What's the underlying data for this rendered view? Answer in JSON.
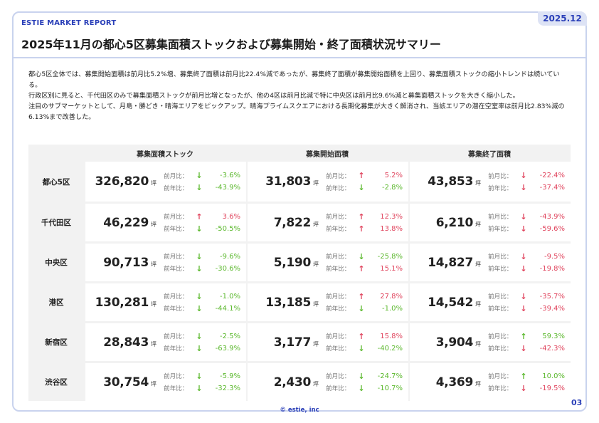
{
  "header": {
    "report_label": "ESTIE MARKET REPORT",
    "date": "2025.12",
    "title": "2025年11月の都心5区募集面積ストックおよび募集開始・終了面積状況サマリー"
  },
  "summary": [
    "都心5区全体では、募集開始面積は前月比5.2%増、募集終了面積は前月比22.4%減であったが、募集終了面積が募集開始面積を上回り、募集面積ストックの縮小トレンドは続いている。",
    "行政区別に見ると、千代田区のみで募集面積ストックが前月比増となったが、他の4区は前月比減で特に中央区は前月比9.6%減と募集面積ストックを大きく縮小した。",
    "注目のサブマーケットとして、月島・勝どき・晴海エリアをピックアップ。晴海プライムスクエアにおける長期化募集が大きく解消され、当該エリアの潜在空室率は前月比2.83%減の6.13%まで改善した。"
  ],
  "table": {
    "columns": [
      "募集面積ストック",
      "募集開始面積",
      "募集終了面積"
    ],
    "unit": "坪",
    "mom_label": "前月比：",
    "yoy_label": "前年比：",
    "rows": [
      {
        "region": "都心5区",
        "cells": [
          {
            "value": "326,820",
            "mom": "-3.6%",
            "mom_dir": "down",
            "mom_color": "down",
            "yoy": "-43.9%",
            "yoy_dir": "down",
            "yoy_color": "down"
          },
          {
            "value": "31,803",
            "mom": "5.2%",
            "mom_dir": "up",
            "mom_color": "up",
            "yoy": "-2.8%",
            "yoy_dir": "down",
            "yoy_color": "down"
          },
          {
            "value": "43,853",
            "mom": "-22.4%",
            "mom_dir": "down",
            "mom_color": "up",
            "yoy": "-37.4%",
            "yoy_dir": "down",
            "yoy_color": "up"
          }
        ]
      },
      {
        "region": "千代田区",
        "cells": [
          {
            "value": "46,229",
            "mom": "3.6%",
            "mom_dir": "up",
            "mom_color": "up",
            "yoy": "-50.5%",
            "yoy_dir": "down",
            "yoy_color": "down"
          },
          {
            "value": "7,822",
            "mom": "12.3%",
            "mom_dir": "up",
            "mom_color": "up",
            "yoy": "13.8%",
            "yoy_dir": "up",
            "yoy_color": "up"
          },
          {
            "value": "6,210",
            "mom": "-43.9%",
            "mom_dir": "down",
            "mom_color": "up",
            "yoy": "-59.6%",
            "yoy_dir": "down",
            "yoy_color": "up"
          }
        ]
      },
      {
        "region": "中央区",
        "cells": [
          {
            "value": "90,713",
            "mom": "-9.6%",
            "mom_dir": "down",
            "mom_color": "down",
            "yoy": "-30.6%",
            "yoy_dir": "down",
            "yoy_color": "down"
          },
          {
            "value": "5,190",
            "mom": "-25.8%",
            "mom_dir": "down",
            "mom_color": "down",
            "yoy": "15.1%",
            "yoy_dir": "up",
            "yoy_color": "up"
          },
          {
            "value": "14,827",
            "mom": "-9.5%",
            "mom_dir": "down",
            "mom_color": "up",
            "yoy": "-19.8%",
            "yoy_dir": "down",
            "yoy_color": "up"
          }
        ]
      },
      {
        "region": "港区",
        "cells": [
          {
            "value": "130,281",
            "mom": "-1.0%",
            "mom_dir": "down",
            "mom_color": "down",
            "yoy": "-44.1%",
            "yoy_dir": "down",
            "yoy_color": "down"
          },
          {
            "value": "13,185",
            "mom": "27.8%",
            "mom_dir": "up",
            "mom_color": "up",
            "yoy": "-1.0%",
            "yoy_dir": "down",
            "yoy_color": "down"
          },
          {
            "value": "14,542",
            "mom": "-35.7%",
            "mom_dir": "down",
            "mom_color": "up",
            "yoy": "-39.4%",
            "yoy_dir": "down",
            "yoy_color": "up"
          }
        ]
      },
      {
        "region": "新宿区",
        "cells": [
          {
            "value": "28,843",
            "mom": "-2.5%",
            "mom_dir": "down",
            "mom_color": "down",
            "yoy": "-63.9%",
            "yoy_dir": "down",
            "yoy_color": "down"
          },
          {
            "value": "3,177",
            "mom": "15.8%",
            "mom_dir": "up",
            "mom_color": "up",
            "yoy": "-40.2%",
            "yoy_dir": "down",
            "yoy_color": "down"
          },
          {
            "value": "3,904",
            "mom": "59.3%",
            "mom_dir": "up",
            "mom_color": "down",
            "yoy": "-42.3%",
            "yoy_dir": "down",
            "yoy_color": "up"
          }
        ]
      },
      {
        "region": "渋谷区",
        "cells": [
          {
            "value": "30,754",
            "mom": "-5.9%",
            "mom_dir": "down",
            "mom_color": "down",
            "yoy": "-32.3%",
            "yoy_dir": "down",
            "yoy_color": "down"
          },
          {
            "value": "2,430",
            "mom": "-24.7%",
            "mom_dir": "down",
            "mom_color": "down",
            "yoy": "-10.7%",
            "yoy_dir": "down",
            "yoy_color": "down"
          },
          {
            "value": "4,369",
            "mom": "10.0%",
            "mom_dir": "up",
            "mom_color": "down",
            "yoy": "-19.5%",
            "yoy_dir": "down",
            "yoy_color": "up"
          }
        ]
      }
    ]
  },
  "colors": {
    "accent": "#2a3fb8",
    "increase_red": "#e0455e",
    "decrease_green": "#5bb82d"
  },
  "footer": {
    "copyright": "© estie, inc",
    "page": "03"
  }
}
